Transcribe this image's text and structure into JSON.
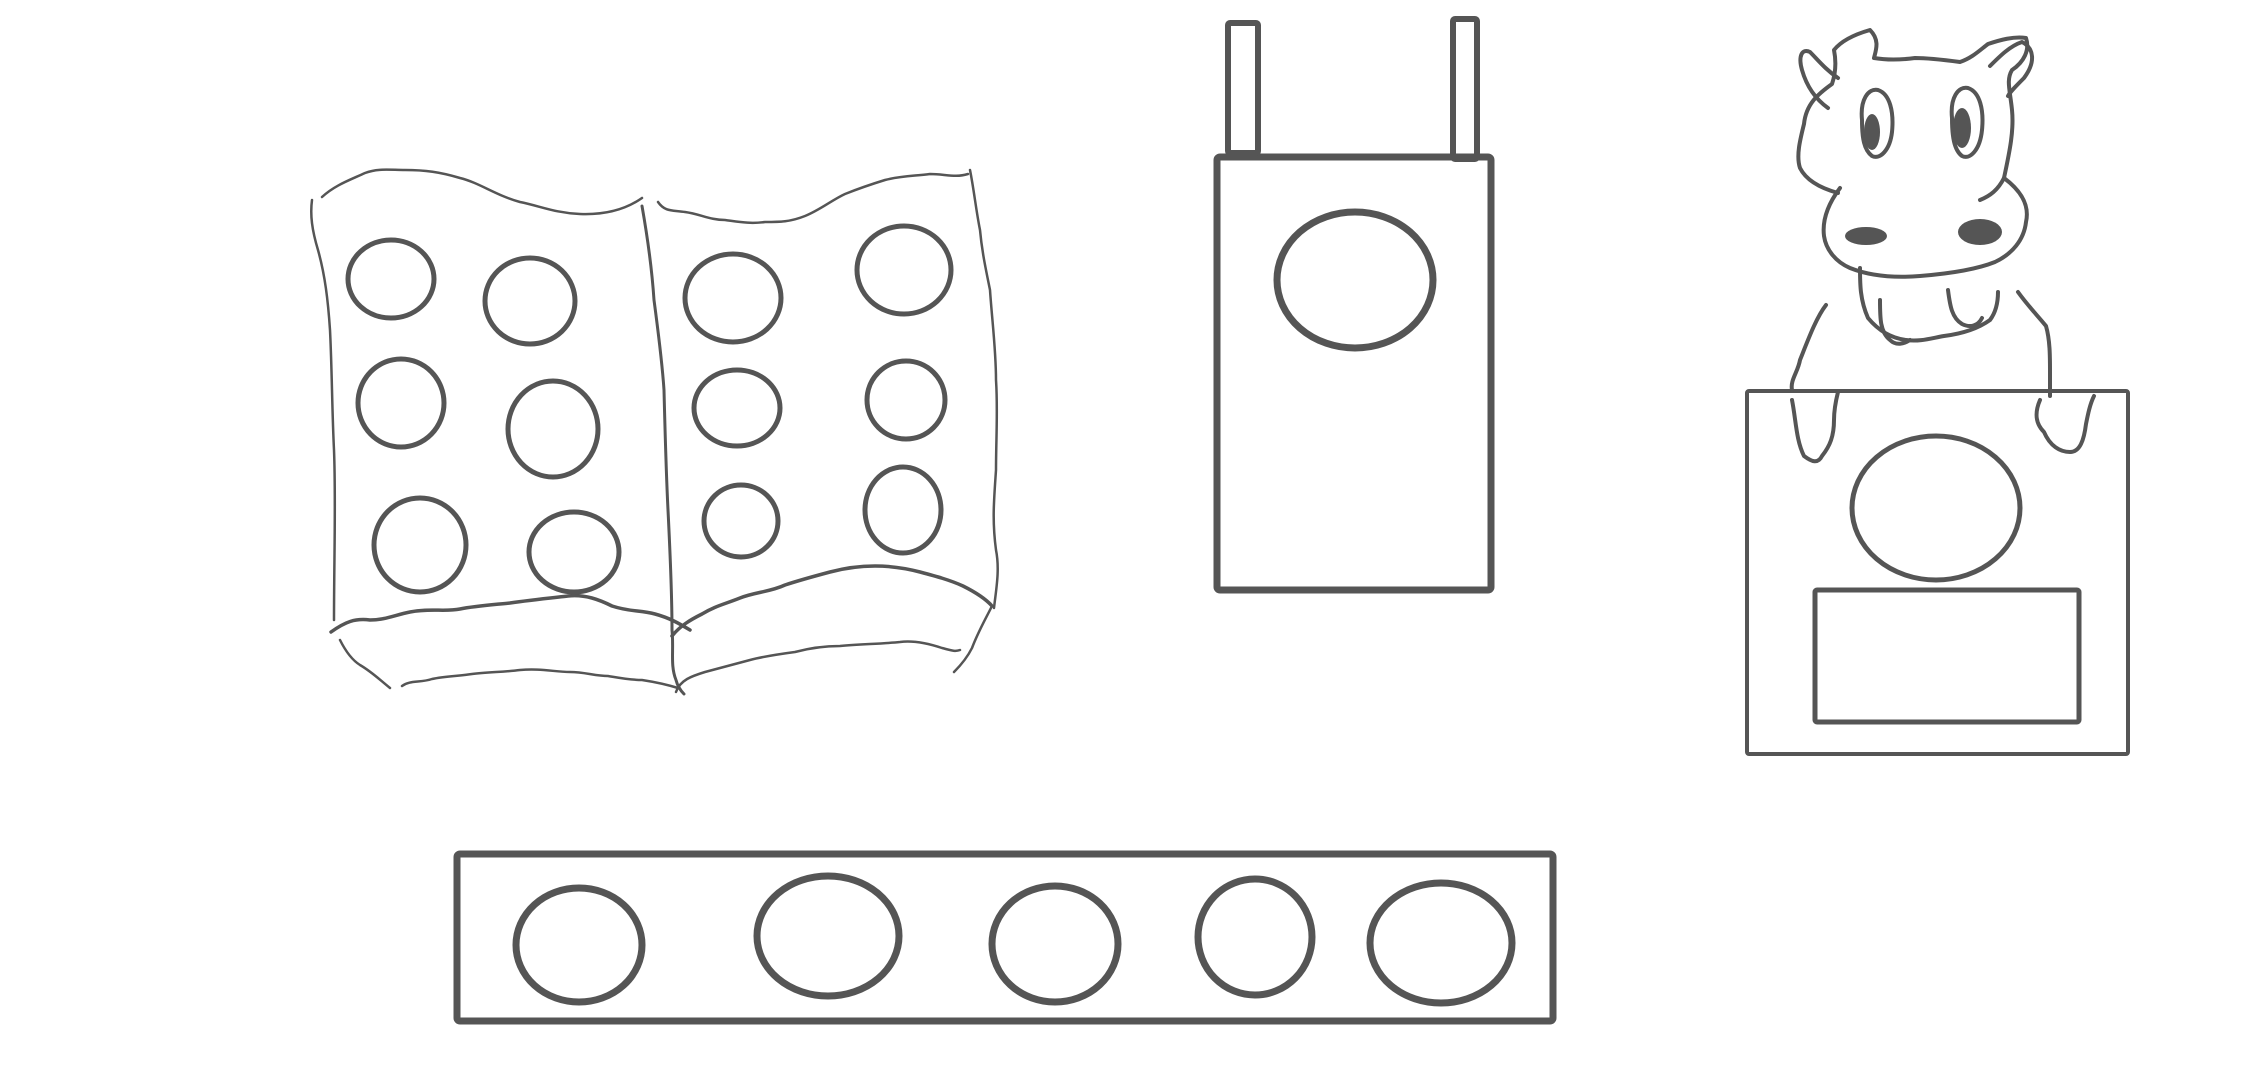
{
  "drawing": {
    "stroke_color": "#555555",
    "fill_color": "#555555",
    "background": "#ffffff",
    "objects": [
      {
        "name": "open-book",
        "holes_per_page": 6,
        "pages": 2
      },
      {
        "name": "tall-box",
        "holes": 1,
        "posts": 2
      },
      {
        "name": "hippo-on-box",
        "holes": 1,
        "panels": 1
      },
      {
        "name": "long-bar",
        "holes": 5
      }
    ]
  }
}
